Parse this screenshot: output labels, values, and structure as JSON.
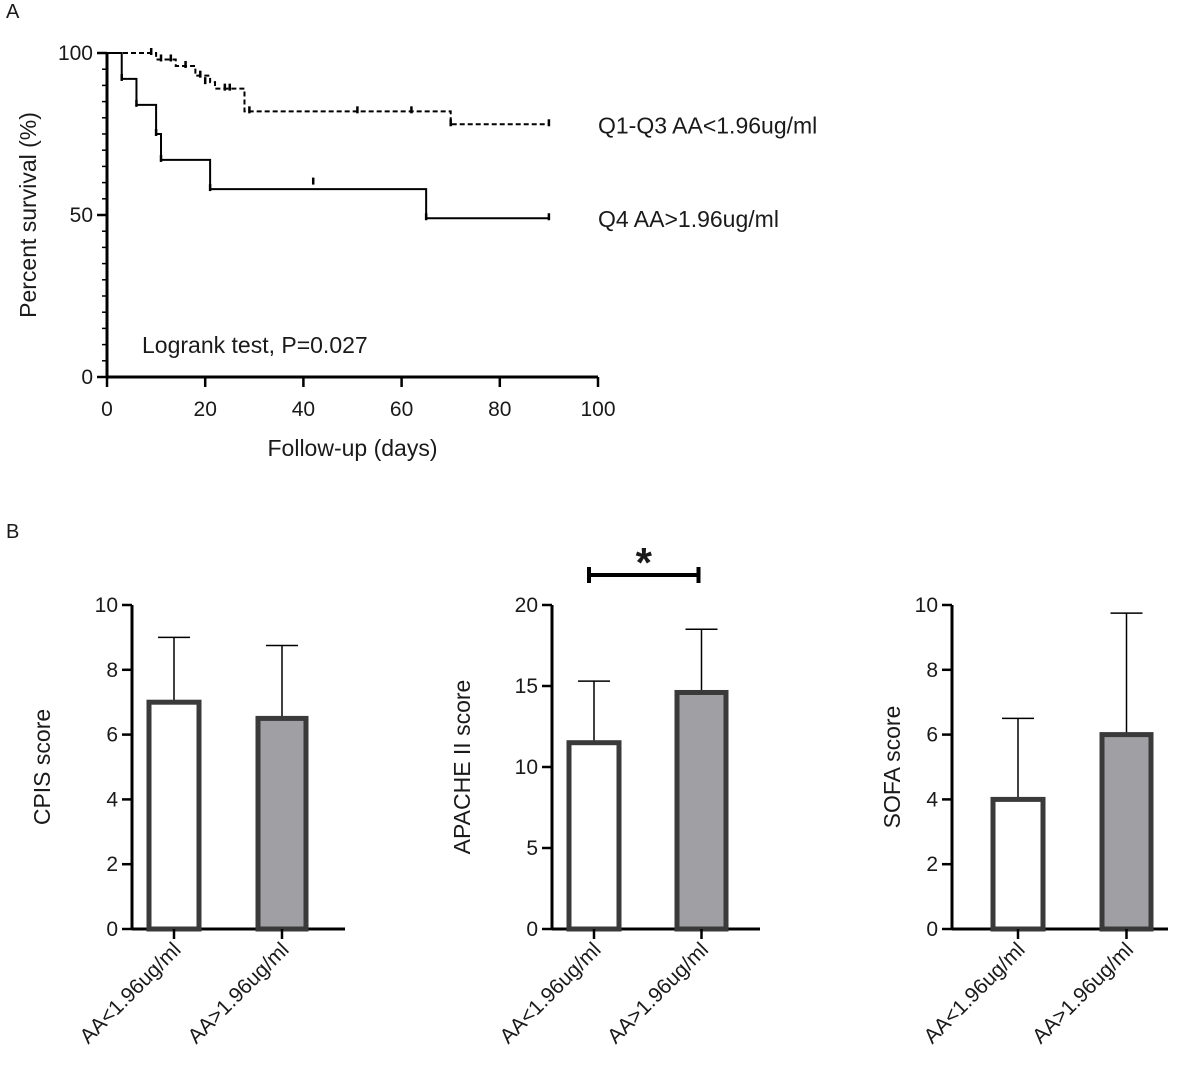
{
  "figure": {
    "panel_a_label": "A",
    "panel_b_label": "B"
  },
  "chart_data": [
    {
      "type": "line",
      "subtype": "kaplan-meier",
      "xlabel": "Follow-up (days)",
      "ylabel": "Percent survival (%)",
      "xlim": [
        0,
        100
      ],
      "ylim": [
        0,
        100
      ],
      "xticks": [
        0,
        20,
        40,
        60,
        80,
        100
      ],
      "yticks": [
        0,
        50,
        100
      ],
      "annotation": "Logrank test, P=0.027",
      "series": [
        {
          "name": "Q1-Q3 AA<1.96ug/ml",
          "style": "dashed",
          "steps": [
            [
              0,
              100
            ],
            [
              10,
              98
            ],
            [
              14,
              96
            ],
            [
              18,
              93
            ],
            [
              21,
              91
            ],
            [
              22,
              89
            ],
            [
              28,
              82
            ],
            [
              70,
              78
            ],
            [
              90,
              78
            ]
          ],
          "censored": [
            [
              9,
              100
            ],
            [
              11,
              98
            ],
            [
              13,
              98
            ],
            [
              16,
              96
            ],
            [
              19,
              93
            ],
            [
              20,
              91
            ],
            [
              24,
              89
            ],
            [
              25,
              89
            ],
            [
              29,
              82
            ],
            [
              51,
              82
            ],
            [
              62,
              82
            ],
            [
              70,
              78
            ],
            [
              90,
              78
            ]
          ]
        },
        {
          "name": "Q4 AA>1.96ug/ml",
          "style": "solid",
          "steps": [
            [
              0,
              100
            ],
            [
              3,
              92
            ],
            [
              6,
              84
            ],
            [
              10,
              75
            ],
            [
              11,
              67
            ],
            [
              21,
              58
            ],
            [
              65,
              49
            ],
            [
              90,
              49
            ]
          ],
          "censored": [
            [
              3,
              92
            ],
            [
              6,
              84
            ],
            [
              10,
              75
            ],
            [
              11,
              67
            ],
            [
              21,
              58
            ],
            [
              42,
              60
            ],
            [
              65,
              49
            ],
            [
              90,
              49
            ]
          ]
        }
      ]
    },
    {
      "type": "bar",
      "ylabel": "CPIS score",
      "categories": [
        "AA<1.96ug/ml",
        "AA>1.96ug/ml"
      ],
      "values": [
        7.0,
        6.5
      ],
      "errors": [
        2.0,
        2.25
      ],
      "fills": [
        "#ffffff",
        "#a0a0a4"
      ],
      "ylim": [
        0,
        10
      ],
      "yticks": [
        0,
        2,
        4,
        6,
        8,
        10
      ],
      "significance": ""
    },
    {
      "type": "bar",
      "ylabel": "APACHE II score",
      "categories": [
        "AA<1.96ug/ml",
        "AA>1.96ug/ml"
      ],
      "values": [
        11.5,
        14.6
      ],
      "errors": [
        3.8,
        3.9
      ],
      "fills": [
        "#ffffff",
        "#a0a0a4"
      ],
      "ylim": [
        0,
        20
      ],
      "yticks": [
        0,
        5,
        10,
        15,
        20
      ],
      "significance": "*"
    },
    {
      "type": "bar",
      "ylabel": "SOFA score",
      "categories": [
        "AA<1.96ug/ml",
        "AA>1.96ug/ml"
      ],
      "values": [
        4.0,
        6.0
      ],
      "errors": [
        2.5,
        3.75
      ],
      "fills": [
        "#ffffff",
        "#a0a0a4"
      ],
      "ylim": [
        0,
        10
      ],
      "yticks": [
        0,
        2,
        4,
        6,
        8,
        10
      ],
      "significance": ""
    }
  ]
}
